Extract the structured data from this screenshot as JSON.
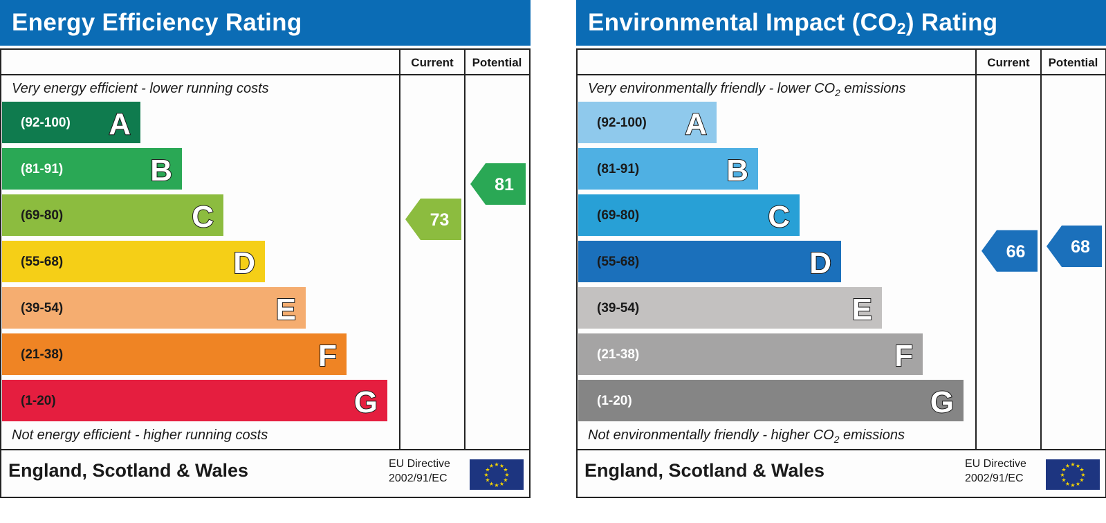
{
  "chart_data": [
    {
      "type": "bar",
      "title": "Energy Efficiency Rating",
      "top_note": "Very energy efficient - lower running costs",
      "bottom_note": "Not energy efficient - higher running costs",
      "column_headers": [
        "Current",
        "Potential"
      ],
      "bands": [
        {
          "letter": "A",
          "range": "(92-100)",
          "color": "#0f7b4e",
          "text_color": "#ffffff"
        },
        {
          "letter": "B",
          "range": "(81-91)",
          "color": "#2aa855",
          "text_color": "#ffffff"
        },
        {
          "letter": "C",
          "range": "(69-80)",
          "color": "#8cbc3f",
          "text_color": "#1a1a1a"
        },
        {
          "letter": "D",
          "range": "(55-68)",
          "color": "#f5cf17",
          "text_color": "#1a1a1a"
        },
        {
          "letter": "E",
          "range": "(39-54)",
          "color": "#f5ad70",
          "text_color": "#1a1a1a"
        },
        {
          "letter": "F",
          "range": "(21-38)",
          "color": "#ef8424",
          "text_color": "#1a1a1a"
        },
        {
          "letter": "G",
          "range": "(1-20)",
          "color": "#e51e3f",
          "text_color": "#1a1a1a"
        }
      ],
      "current": {
        "value": 73,
        "band": "C",
        "color": "#8cbc3f"
      },
      "potential": {
        "value": 81,
        "band": "B",
        "color": "#2aa855"
      },
      "footer_region": "England, Scotland & Wales",
      "footer_directive_line1": "EU Directive",
      "footer_directive_line2": "2002/91/EC"
    },
    {
      "type": "bar",
      "title": "Environmental Impact (CO2) Rating",
      "title_parts": [
        "Environmental Impact (CO",
        "2",
        ") Rating"
      ],
      "top_note_parts": [
        "Very environmentally friendly - lower CO",
        "2",
        " emissions"
      ],
      "bottom_note_parts": [
        "Not environmentally friendly - higher CO",
        "2",
        " emissions"
      ],
      "column_headers": [
        "Current",
        "Potential"
      ],
      "bands": [
        {
          "letter": "A",
          "range": "(92-100)",
          "color": "#8fc9ec",
          "text_color": "#1a1a1a"
        },
        {
          "letter": "B",
          "range": "(81-91)",
          "color": "#4fb0e3",
          "text_color": "#1a1a1a"
        },
        {
          "letter": "C",
          "range": "(69-80)",
          "color": "#28a0d6",
          "text_color": "#1a1a1a"
        },
        {
          "letter": "D",
          "range": "(55-68)",
          "color": "#1b70bb",
          "text_color": "#1a1a1a"
        },
        {
          "letter": "E",
          "range": "(39-54)",
          "color": "#c3c1c0",
          "text_color": "#1a1a1a"
        },
        {
          "letter": "F",
          "range": "(21-38)",
          "color": "#a5a4a4",
          "text_color": "#ffffff"
        },
        {
          "letter": "G",
          "range": "(1-20)",
          "color": "#858585",
          "text_color": "#ffffff"
        }
      ],
      "current": {
        "value": 66,
        "band": "D",
        "color": "#1b70bb"
      },
      "potential": {
        "value": 68,
        "band": "D",
        "color": "#1b70bb"
      },
      "footer_region": "England, Scotland & Wales",
      "footer_directive_line1": "EU Directive",
      "footer_directive_line2": "2002/91/EC"
    }
  ]
}
